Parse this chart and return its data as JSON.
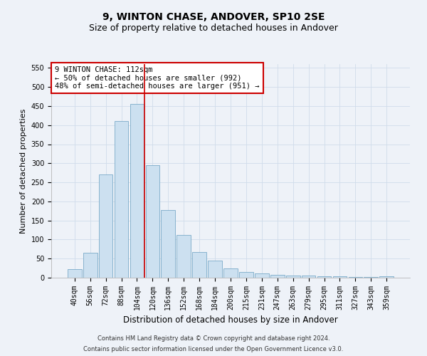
{
  "title": "9, WINTON CHASE, ANDOVER, SP10 2SE",
  "subtitle": "Size of property relative to detached houses in Andover",
  "xlabel": "Distribution of detached houses by size in Andover",
  "ylabel": "Number of detached properties",
  "categories": [
    "40sqm",
    "56sqm",
    "72sqm",
    "88sqm",
    "104sqm",
    "120sqm",
    "136sqm",
    "152sqm",
    "168sqm",
    "184sqm",
    "200sqm",
    "215sqm",
    "231sqm",
    "247sqm",
    "263sqm",
    "279sqm",
    "295sqm",
    "311sqm",
    "327sqm",
    "343sqm",
    "359sqm"
  ],
  "values": [
    22,
    65,
    270,
    410,
    455,
    295,
    178,
    112,
    67,
    44,
    25,
    15,
    12,
    8,
    6,
    5,
    4,
    3,
    2,
    2,
    4
  ],
  "bar_color": "#cce0f0",
  "bar_edge_color": "#7aaac8",
  "grid_color": "#d0dcea",
  "background_color": "#eef2f8",
  "vline_color": "#cc0000",
  "annotation_text": "9 WINTON CHASE: 112sqm\n← 50% of detached houses are smaller (992)\n48% of semi-detached houses are larger (951) →",
  "annotation_box_color": "white",
  "annotation_box_edge": "#cc0000",
  "ylim": [
    0,
    560
  ],
  "yticks": [
    0,
    50,
    100,
    150,
    200,
    250,
    300,
    350,
    400,
    450,
    500,
    550
  ],
  "footer_line1": "Contains HM Land Registry data © Crown copyright and database right 2024.",
  "footer_line2": "Contains public sector information licensed under the Open Government Licence v3.0.",
  "title_fontsize": 10,
  "subtitle_fontsize": 9,
  "tick_fontsize": 7,
  "ylabel_fontsize": 8,
  "xlabel_fontsize": 8.5,
  "annotation_fontsize": 7.5,
  "footer_fontsize": 6
}
